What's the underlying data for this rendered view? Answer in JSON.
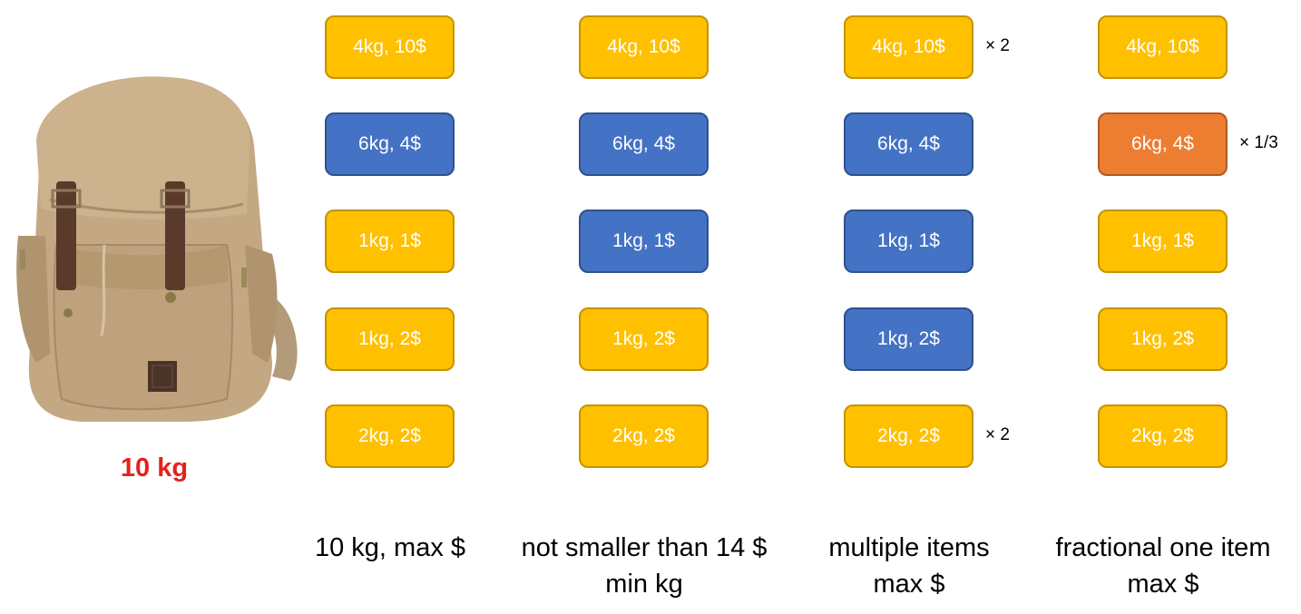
{
  "capacity_label": "10 kg",
  "colors": {
    "yellow": "#ffc000",
    "yellow_border": "#c59300",
    "blue": "#4472c4",
    "blue_border": "#2f528f",
    "orange": "#ed7d31",
    "orange_border": "#ae5a21",
    "capacity_text": "#e3221b"
  },
  "columns": [
    {
      "caption_lines": [
        "10 kg, max $"
      ],
      "items": [
        {
          "label": "4kg, 10$",
          "color": "yellow",
          "multiplier": ""
        },
        {
          "label": "6kg, 4$",
          "color": "blue",
          "multiplier": ""
        },
        {
          "label": "1kg, 1$",
          "color": "yellow",
          "multiplier": ""
        },
        {
          "label": "1kg, 2$",
          "color": "yellow",
          "multiplier": ""
        },
        {
          "label": "2kg, 2$",
          "color": "yellow",
          "multiplier": ""
        }
      ]
    },
    {
      "caption_lines": [
        "not smaller than 14 $",
        "min kg"
      ],
      "items": [
        {
          "label": "4kg, 10$",
          "color": "yellow",
          "multiplier": ""
        },
        {
          "label": "6kg, 4$",
          "color": "blue",
          "multiplier": ""
        },
        {
          "label": "1kg, 1$",
          "color": "blue",
          "multiplier": ""
        },
        {
          "label": "1kg, 2$",
          "color": "yellow",
          "multiplier": ""
        },
        {
          "label": "2kg, 2$",
          "color": "yellow",
          "multiplier": ""
        }
      ]
    },
    {
      "caption_lines": [
        "multiple items",
        "max $"
      ],
      "items": [
        {
          "label": "4kg, 10$",
          "color": "yellow",
          "multiplier": "× 2"
        },
        {
          "label": "6kg, 4$",
          "color": "blue",
          "multiplier": ""
        },
        {
          "label": "1kg, 1$",
          "color": "blue",
          "multiplier": ""
        },
        {
          "label": "1kg, 2$",
          "color": "blue",
          "multiplier": ""
        },
        {
          "label": "2kg, 2$",
          "color": "yellow",
          "multiplier": "× 2"
        }
      ]
    },
    {
      "caption_lines": [
        "fractional one item",
        "max $"
      ],
      "items": [
        {
          "label": "4kg, 10$",
          "color": "yellow",
          "multiplier": ""
        },
        {
          "label": "6kg, 4$",
          "color": "orange",
          "multiplier": "× 1/3"
        },
        {
          "label": "1kg, 1$",
          "color": "yellow",
          "multiplier": ""
        },
        {
          "label": "1kg, 2$",
          "color": "yellow",
          "multiplier": ""
        },
        {
          "label": "2kg, 2$",
          "color": "yellow",
          "multiplier": ""
        }
      ]
    }
  ]
}
